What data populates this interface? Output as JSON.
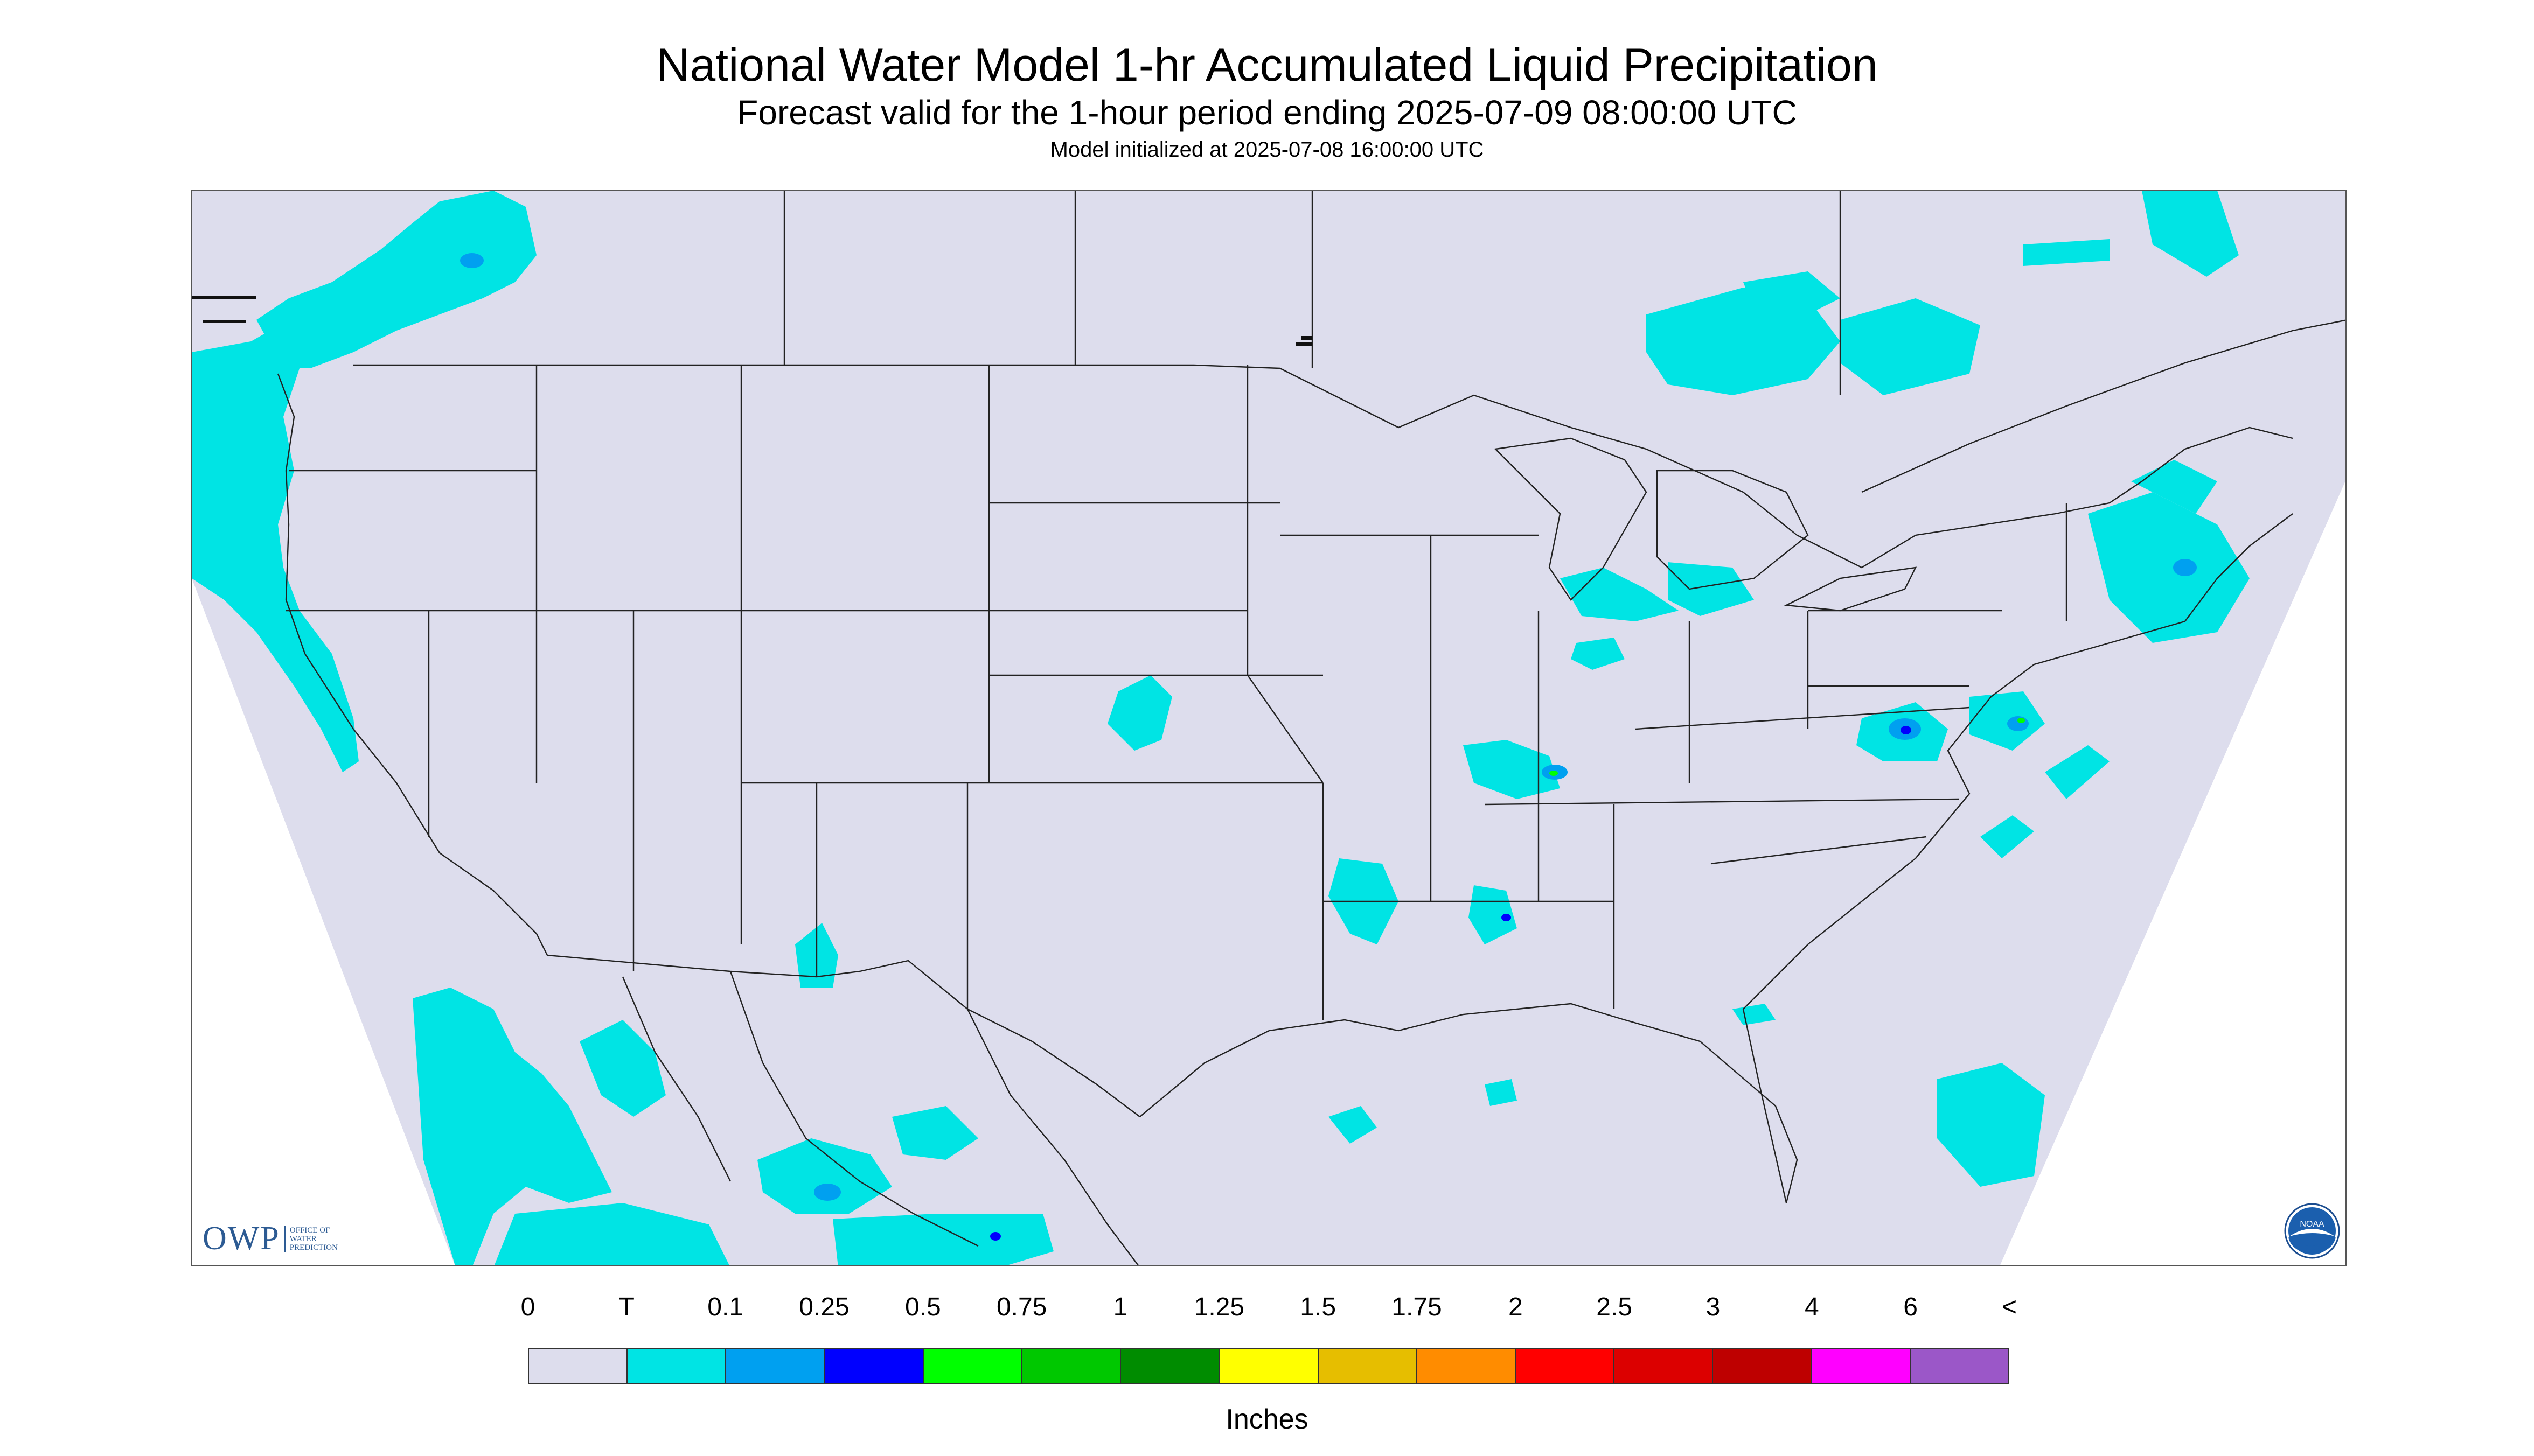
{
  "header": {
    "title": "National Water Model 1-hr Accumulated Liquid Precipitation",
    "subtitle": "Forecast valid for the 1-hour period ending 2025-07-09 08:00:00 UTC",
    "init": "Model initialized at 2025-07-08 16:00:00 UTC"
  },
  "map": {
    "background_color": "#dddded",
    "outside_domain_color": "#ffffff",
    "precip_color": "#00e4e4",
    "owp_logo": {
      "text": "OWP",
      "sub": "OFFICE OF\nWATER\nPREDICTION"
    },
    "noaa_logo": {
      "text": "NOAA"
    }
  },
  "legend": {
    "labels": [
      "0",
      "T",
      "0.1",
      "0.25",
      "0.5",
      "0.75",
      "1",
      "1.25",
      "1.5",
      "1.75",
      "2",
      "2.5",
      "3",
      "4",
      "6",
      "<"
    ],
    "colors": [
      "#dddded",
      "#00e4e4",
      "#00a0f0",
      "#0000ff",
      "#00ff00",
      "#00c800",
      "#008c00",
      "#ffff00",
      "#e6be00",
      "#ff8c00",
      "#ff0000",
      "#dc0000",
      "#be0000",
      "#ff00ff",
      "#9b57c8"
    ],
    "units": "Inches"
  }
}
